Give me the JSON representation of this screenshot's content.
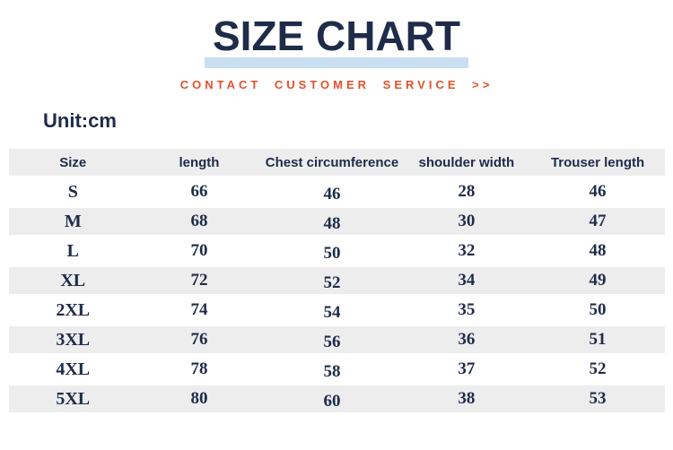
{
  "title": "SIZE CHART",
  "subtitle": "CONTACT CUSTOMER SERVICE >>",
  "unit_label": "Unit:cm",
  "colors": {
    "navy": "#1e2c49",
    "orange": "#e5512d",
    "band_blue": "#c9dff1",
    "stripe_gray": "#ededed"
  },
  "chart_data": {
    "type": "table",
    "title": "SIZE CHART",
    "unit": "cm",
    "columns": [
      "Size",
      "length",
      "Chest circumference",
      "shoulder width",
      "Trouser length"
    ],
    "rows": [
      [
        "S",
        "66",
        "46",
        "28",
        "46"
      ],
      [
        "M",
        "68",
        "48",
        "30",
        "47"
      ],
      [
        "L",
        "70",
        "50",
        "32",
        "48"
      ],
      [
        "XL",
        "72",
        "52",
        "34",
        "49"
      ],
      [
        "2XL",
        "74",
        "54",
        "35",
        "50"
      ],
      [
        "3XL",
        "76",
        "56",
        "36",
        "51"
      ],
      [
        "4XL",
        "78",
        "58",
        "37",
        "52"
      ],
      [
        "5XL",
        "80",
        "60",
        "38",
        "53"
      ]
    ]
  }
}
